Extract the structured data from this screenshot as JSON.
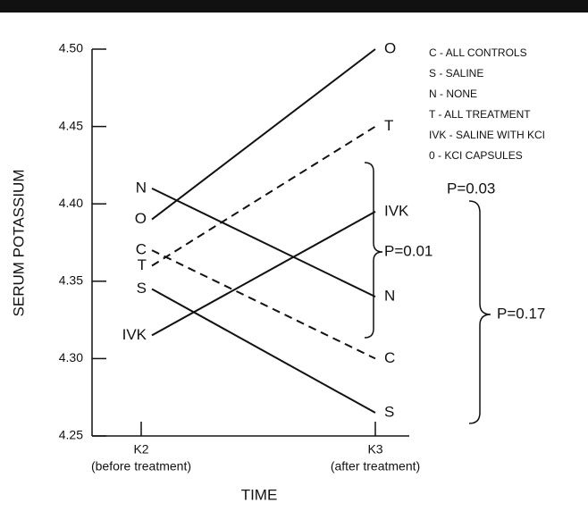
{
  "chart_data": {
    "type": "line",
    "categories": [
      "K2",
      "K3"
    ],
    "category_notes": [
      "(before treatment)",
      "(after treatment)"
    ],
    "xlabel": "TIME",
    "ylabel": "SERUM POTASSIUM",
    "ylim": [
      4.25,
      4.5
    ],
    "yticks": [
      {
        "value": 4.25,
        "label": "4.25"
      },
      {
        "value": 4.3,
        "label": "4.30"
      },
      {
        "value": 4.35,
        "label": "4.35"
      },
      {
        "value": 4.4,
        "label": "4.40"
      },
      {
        "value": 4.45,
        "label": "4.45"
      },
      {
        "value": 4.5,
        "label": "4.50"
      }
    ],
    "series": [
      {
        "name": "O",
        "color": "#111111",
        "dash": false,
        "values": [
          4.39,
          4.5
        ]
      },
      {
        "name": "T",
        "color": "#111111",
        "dash": true,
        "values": [
          4.36,
          4.45
        ]
      },
      {
        "name": "N",
        "color": "#111111",
        "dash": false,
        "values": [
          4.41,
          4.34
        ]
      },
      {
        "name": "C",
        "color": "#111111",
        "dash": true,
        "values": [
          4.37,
          4.3
        ]
      },
      {
        "name": "S",
        "color": "#111111",
        "dash": false,
        "values": [
          4.345,
          4.265
        ]
      },
      {
        "name": "IVK",
        "color": "#111111",
        "dash": false,
        "values": [
          4.315,
          4.395
        ]
      }
    ],
    "legend": [
      "C - ALL CONTROLS",
      "S - SALINE",
      "N - NONE",
      "T - ALL TREATMENT",
      "IVK - SALINE WITH KCI",
      "0 - KCI CAPSULES"
    ],
    "annotations": [
      "P=0.01",
      "P=0.03",
      "P=0.17"
    ]
  }
}
